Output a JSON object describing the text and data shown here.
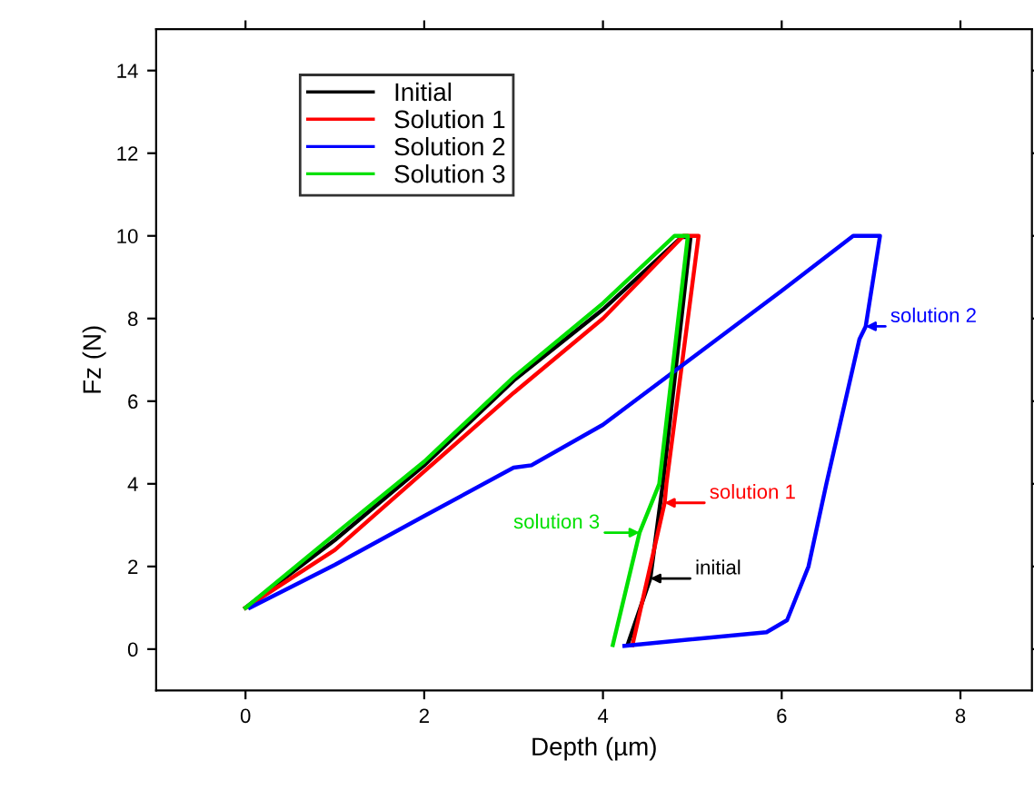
{
  "chart_data": {
    "type": "line",
    "xlabel": "Depth (µm)",
    "ylabel": "Fz (N)",
    "xlim": [
      -1,
      8.8
    ],
    "ylim": [
      -1,
      15
    ],
    "xticks": [
      0,
      2,
      4,
      6,
      8
    ],
    "yticks": [
      0,
      2,
      4,
      6,
      8,
      10,
      12,
      14
    ],
    "grid": false,
    "legend": "top left",
    "marker": "none",
    "line_style": "solid",
    "series": [
      {
        "name": "Initial",
        "color": "#000000",
        "x": [
          0,
          1,
          2,
          3,
          4,
          4.88,
          4.98,
          4.67,
          4.53,
          4.28
        ],
        "values": [
          1,
          2.64,
          4.45,
          6.5,
          8.22,
          9.97,
          9.97,
          4,
          1.71,
          0.13
        ]
      },
      {
        "name": "Solution 1",
        "color": "#ff0000",
        "x": [
          0,
          1,
          2,
          3,
          4,
          4.9,
          5.07,
          4.71,
          4.69,
          4.33
        ],
        "values": [
          1,
          2.4,
          4.3,
          6.2,
          8.0,
          10,
          10,
          4,
          3.54,
          0.1
        ]
      },
      {
        "name": "Solution 2",
        "color": "#0000ff",
        "x": [
          0.05,
          1,
          2,
          3,
          3.2,
          4,
          5,
          6,
          6.8,
          7.1,
          6.94,
          6.87,
          6.5,
          6.3,
          6.06,
          5.83,
          4.24
        ],
        "values": [
          1,
          2.04,
          3.22,
          4.39,
          4.45,
          5.43,
          7.05,
          8.67,
          10,
          10,
          7.81,
          7.5,
          4,
          2,
          0.7,
          0.41,
          0.08
        ]
      },
      {
        "name": "Solution 3",
        "color": "#00e000",
        "x": [
          0,
          1,
          2,
          3,
          4,
          4.8,
          4.95,
          4.63,
          4.41,
          4.11
        ],
        "values": [
          1,
          2.78,
          4.54,
          6.58,
          8.37,
          10,
          10,
          4,
          2.82,
          0.1
        ]
      }
    ],
    "annotations": [
      {
        "text": "solution 2",
        "x": 6.94,
        "y": 7.81
      },
      {
        "text": "solution 1",
        "x": 4.69,
        "y": 3.54
      },
      {
        "text": "solution 3",
        "x": 4.41,
        "y": 2.82
      },
      {
        "text": "initial",
        "x": 4.53,
        "y": 1.71
      }
    ]
  }
}
